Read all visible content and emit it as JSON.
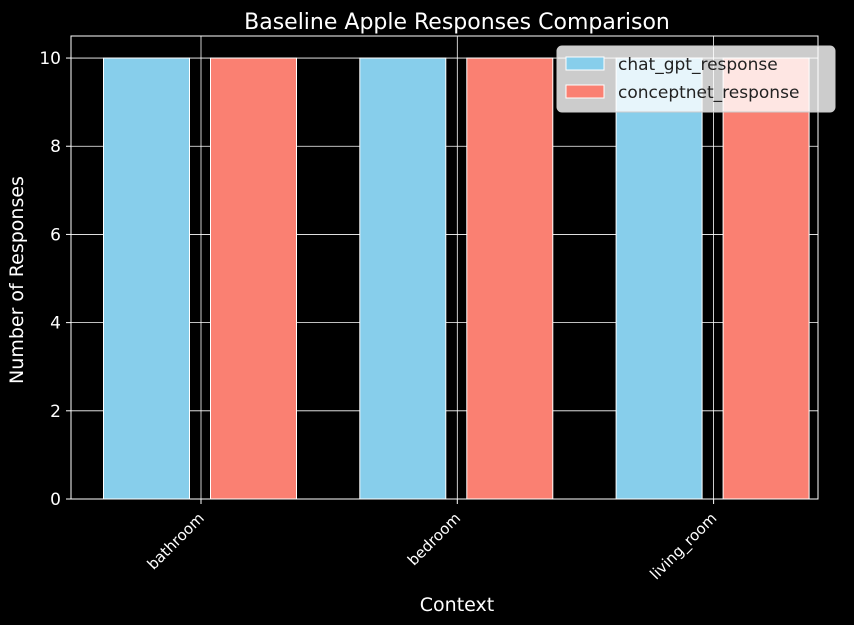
{
  "chart_data": {
    "type": "bar",
    "title": "Baseline Apple Responses Comparison",
    "xlabel": "Context",
    "ylabel": "Number of Responses",
    "categories": [
      "bathroom",
      "bedroom",
      "living_room"
    ],
    "series": [
      {
        "name": "chat_gpt_response",
        "values": [
          10,
          10,
          10
        ],
        "color": "#87ceeb"
      },
      {
        "name": "conceptnet_response",
        "values": [
          10,
          10,
          10
        ],
        "color": "#fa8072"
      }
    ],
    "ylim": [
      0,
      10.5
    ],
    "yticks": [
      0,
      2,
      4,
      6,
      8,
      10
    ],
    "grid": true,
    "legend": "top-right",
    "background": "#000000",
    "foreground": "#ffffff"
  }
}
